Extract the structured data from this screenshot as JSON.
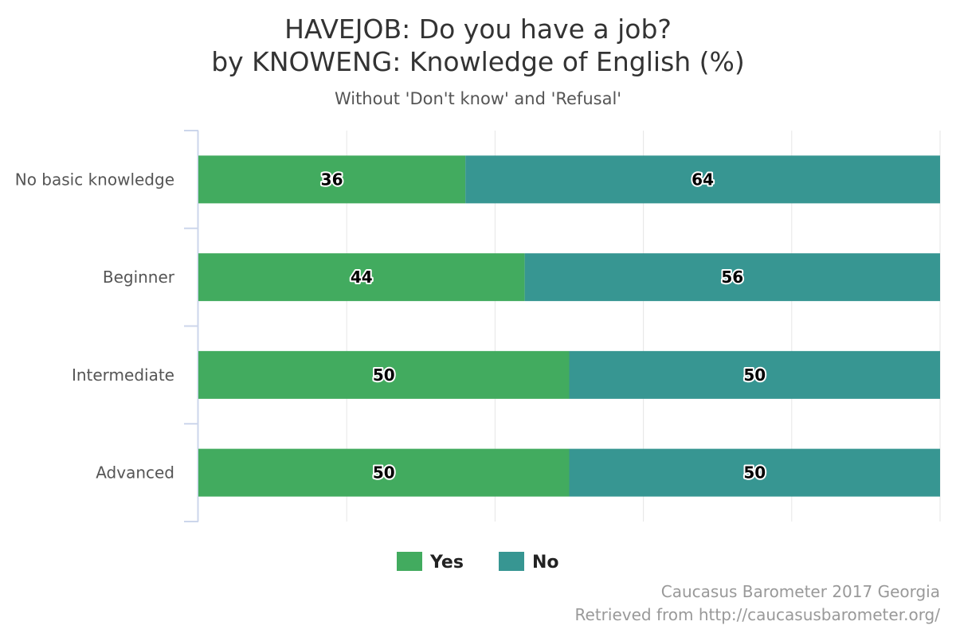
{
  "chart_data": {
    "type": "bar",
    "orientation": "horizontal",
    "stacked": true,
    "title_line1": "HAVEJOB: Do you have a job?",
    "title_line2": "by KNOWENG: Knowledge of English (%)",
    "subtitle": "Without 'Don't know' and 'Refusal'",
    "categories": [
      "No basic knowledge",
      "Beginner",
      "Intermediate",
      "Advanced"
    ],
    "series": [
      {
        "name": "Yes",
        "color": "#42ab5f",
        "values": [
          36,
          44,
          50,
          50
        ]
      },
      {
        "name": "No",
        "color": "#379692",
        "values": [
          64,
          56,
          50,
          50
        ]
      }
    ],
    "xlim": [
      0,
      100
    ],
    "grid": true,
    "legend_position": "bottom-center"
  },
  "credits": {
    "line1": "Caucasus Barometer 2017 Georgia",
    "line2": "Retrieved from http://caucasusbarometer.org/"
  }
}
